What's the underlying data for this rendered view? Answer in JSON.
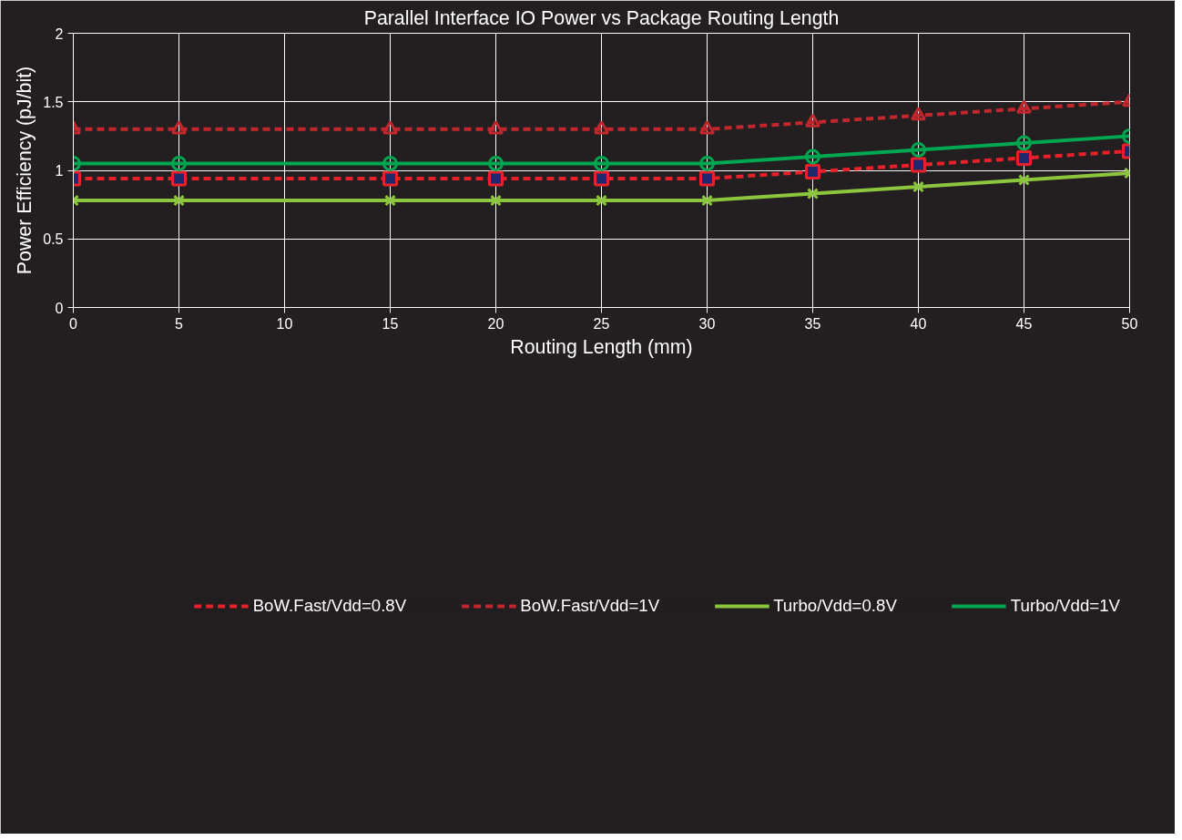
{
  "chart_data": {
    "type": "line",
    "title": "Parallel Interface IO Power vs Package Routing Length",
    "xlabel": "Routing Length (mm)",
    "ylabel": "Power Efficiency (pJ/bit)",
    "x": [
      0,
      5,
      15,
      20,
      25,
      30,
      35,
      40,
      45,
      50
    ],
    "series": [
      {
        "name": "BoW.Fast/Vdd=0.8V",
        "color": "#e8202a",
        "line_style": "dashed",
        "marker": "square",
        "values": [
          0.94,
          0.94,
          0.94,
          0.94,
          0.94,
          0.94,
          0.99,
          1.04,
          1.09,
          1.14
        ]
      },
      {
        "name": "BoW.Fast/Vdd=1V",
        "color": "#c1272d",
        "line_style": "dashed",
        "marker": "triangle",
        "values": [
          1.3,
          1.3,
          1.3,
          1.3,
          1.3,
          1.3,
          1.35,
          1.4,
          1.45,
          1.5
        ]
      },
      {
        "name": "Turbo/Vdd=0.8V",
        "color": "#8cc63f",
        "line_style": "solid",
        "marker": "cross",
        "values": [
          0.78,
          0.78,
          0.78,
          0.78,
          0.78,
          0.78,
          0.83,
          0.88,
          0.93,
          0.98
        ]
      },
      {
        "name": "Turbo/Vdd=1V",
        "color": "#00a650",
        "line_style": "solid",
        "marker": "circle",
        "values": [
          1.05,
          1.05,
          1.05,
          1.05,
          1.05,
          1.05,
          1.1,
          1.15,
          1.2,
          1.25
        ]
      }
    ],
    "xlim": [
      0,
      50
    ],
    "xticks": [
      0,
      5,
      10,
      15,
      20,
      25,
      30,
      35,
      40,
      45,
      50
    ],
    "ylim": [
      0,
      2
    ],
    "yticks": [
      0,
      0.5,
      1,
      1.5,
      2
    ],
    "grid": true,
    "legend": "bottom"
  }
}
